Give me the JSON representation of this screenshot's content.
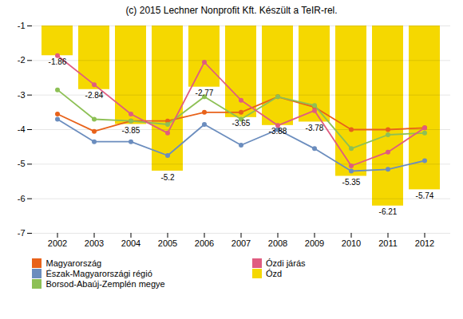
{
  "chart_data": {
    "type": "line",
    "title": "(c) 2015 Lechner Nonprofit Kft. Készült a TeIR-rel.",
    "categories": [
      "2002",
      "2003",
      "2004",
      "2005",
      "2006",
      "2007",
      "2008",
      "2009",
      "2010",
      "2011",
      "2012"
    ],
    "series": [
      {
        "name": "Magyarország",
        "color": "#E8621A",
        "marker": "circle",
        "values": [
          -3.55,
          -4.05,
          -3.75,
          -3.75,
          -3.5,
          -3.5,
          -3.05,
          -3.35,
          -4.0,
          -4.0,
          -3.95
        ]
      },
      {
        "name": "Észak-Magyarországi régió",
        "color": "#6B8DBE",
        "marker": "circle",
        "values": [
          -3.7,
          -4.35,
          -4.35,
          -4.75,
          -3.85,
          -4.45,
          -4.0,
          -4.55,
          -5.2,
          -5.15,
          -4.9
        ]
      },
      {
        "name": "Borsod-Abaúj-Zemplén megye",
        "color": "#8DC055",
        "marker": "circle",
        "values": [
          -2.85,
          -3.7,
          -3.75,
          -3.85,
          -3.05,
          -3.7,
          -3.05,
          -3.3,
          -4.55,
          -4.15,
          -4.1
        ]
      },
      {
        "name": "Ózdi járás",
        "color": "#E05C80",
        "marker": "circle",
        "values": [
          -1.86,
          -2.7,
          -3.55,
          -4.1,
          -2.05,
          -3.15,
          -3.88,
          -3.45,
          -5.05,
          -4.65,
          -3.95
        ]
      },
      {
        "name": "Ózd",
        "type": "bar",
        "color": "#F5D800",
        "data_labels": true,
        "values": [
          -1.86,
          -2.84,
          -3.85,
          -5.2,
          -2.77,
          -3.65,
          -3.88,
          -3.78,
          -5.35,
          -6.21,
          -5.74
        ]
      }
    ],
    "ylim": [
      -7,
      -1
    ],
    "yticks": [
      -7,
      -6,
      -5,
      -4,
      -3,
      -2,
      -1
    ],
    "grid": true,
    "legend": "bottom"
  }
}
